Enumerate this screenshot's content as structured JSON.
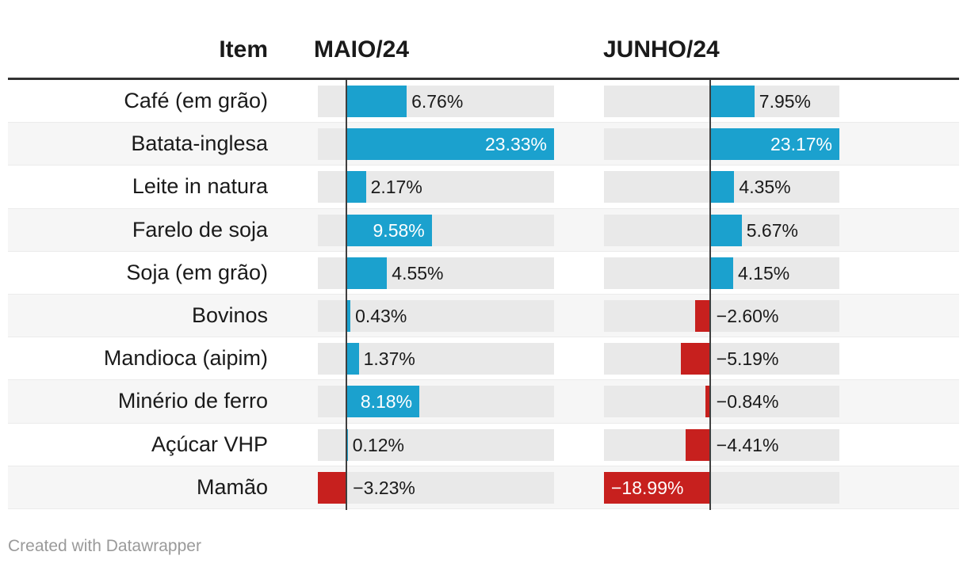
{
  "header": {
    "item_label": "Item",
    "col1_label": "MAIO/24",
    "col2_label": "JUNHO/24"
  },
  "footer": {
    "attribution": "Created with Datawrapper"
  },
  "colors": {
    "positive_bar": "#1ba1ce",
    "negative_bar": "#c7201e",
    "track": "#e9e9e9",
    "row_stripe": "#f6f6f6",
    "zero_line": "#3f3f3f",
    "header_rule": "#333333",
    "text": "#1a1a1a",
    "label_on_bar": "#ffffff",
    "attribution_text": "#9a9a9a"
  },
  "chart_data": {
    "type": "bar",
    "orientation": "horizontal",
    "grid": false,
    "legend_position": "none",
    "categories": [
      "Café (em grão)",
      "Batata-inglesa",
      "Leite in natura",
      "Farelo de soja",
      "Soja (em grão)",
      "Bovinos",
      "Mandioca (aipim)",
      "Minério de ferro",
      "Açúcar VHP",
      "Mamão"
    ],
    "series": [
      {
        "name": "MAIO/24",
        "values": [
          6.76,
          23.33,
          2.17,
          9.58,
          4.55,
          0.43,
          1.37,
          8.18,
          0.12,
          -3.23
        ],
        "labels": [
          "6.76%",
          "23.33%",
          "2.17%",
          "9.58%",
          "4.55%",
          "0.43%",
          "1.37%",
          "8.18%",
          "0.12%",
          "−3.23%"
        ],
        "label_placement": [
          "out",
          "in-end",
          "out",
          "in-end",
          "out",
          "out",
          "out",
          "in-end",
          "out",
          "out"
        ],
        "axis_range": [
          -3.23,
          23.33
        ]
      },
      {
        "name": "JUNHO/24",
        "values": [
          7.95,
          23.17,
          4.35,
          5.67,
          4.15,
          -2.6,
          -5.19,
          -0.84,
          -4.41,
          -18.99
        ],
        "labels": [
          "7.95%",
          "23.17%",
          "4.35%",
          "5.67%",
          "4.15%",
          "−2.60%",
          "−5.19%",
          "−0.84%",
          "−4.41%",
          "−18.99%"
        ],
        "label_placement": [
          "out",
          "in-end",
          "out",
          "out",
          "out",
          "out",
          "out",
          "out",
          "out",
          "in-start"
        ],
        "axis_range": [
          -18.99,
          23.17
        ]
      }
    ]
  }
}
